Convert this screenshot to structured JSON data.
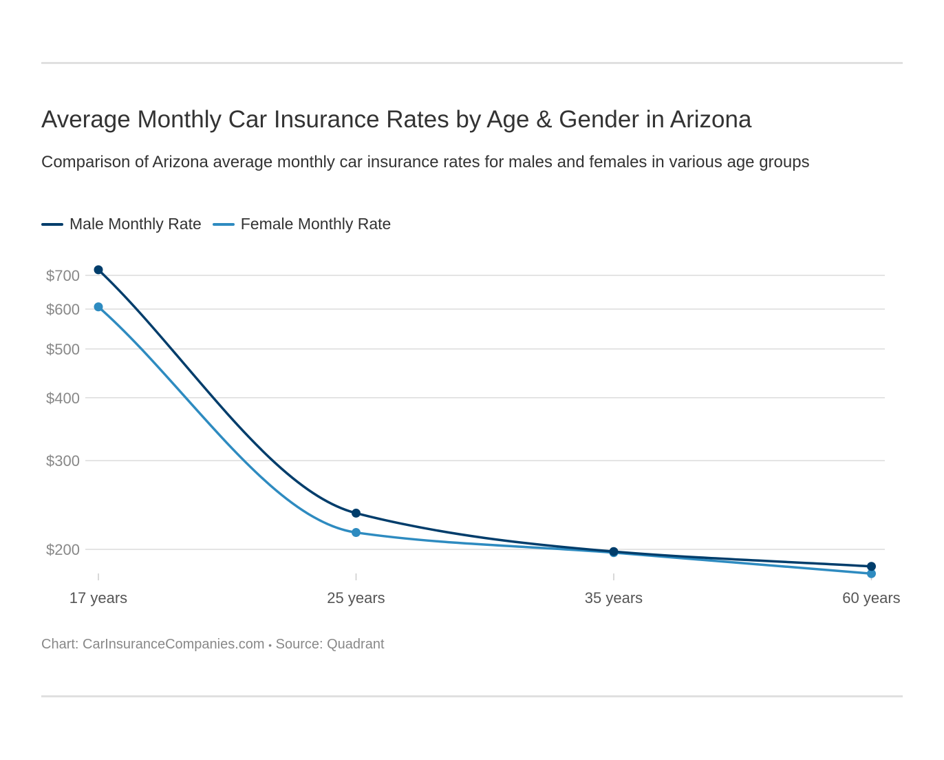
{
  "chart_data": {
    "type": "line",
    "title": "Average Monthly Car Insurance Rates by Age & Gender in Arizona",
    "subtitle": "Comparison of Arizona average monthly car insurance rates for males and females in various age groups",
    "categories": [
      "17 years",
      "25 years",
      "35 years",
      "60 years"
    ],
    "series": [
      {
        "name": "Male Monthly Rate",
        "color": "#003d6b",
        "values": [
          718,
          236,
          198,
          185
        ]
      },
      {
        "name": "Female Monthly Rate",
        "color": "#2e8bc0",
        "values": [
          606,
          216,
          197,
          179
        ]
      }
    ],
    "y_scale": "log",
    "y_ticks": [
      200,
      300,
      400,
      500,
      600,
      700
    ],
    "y_tick_labels": [
      "$200",
      "$300",
      "$400",
      "$500",
      "$600",
      "$700"
    ],
    "grid": true,
    "legend_position": "top-left",
    "xlabel": "",
    "ylabel": ""
  },
  "footer": {
    "chart_credit": "Chart: CarInsuranceCompanies.com",
    "separator": "•",
    "source": "Source: Quadrant"
  }
}
